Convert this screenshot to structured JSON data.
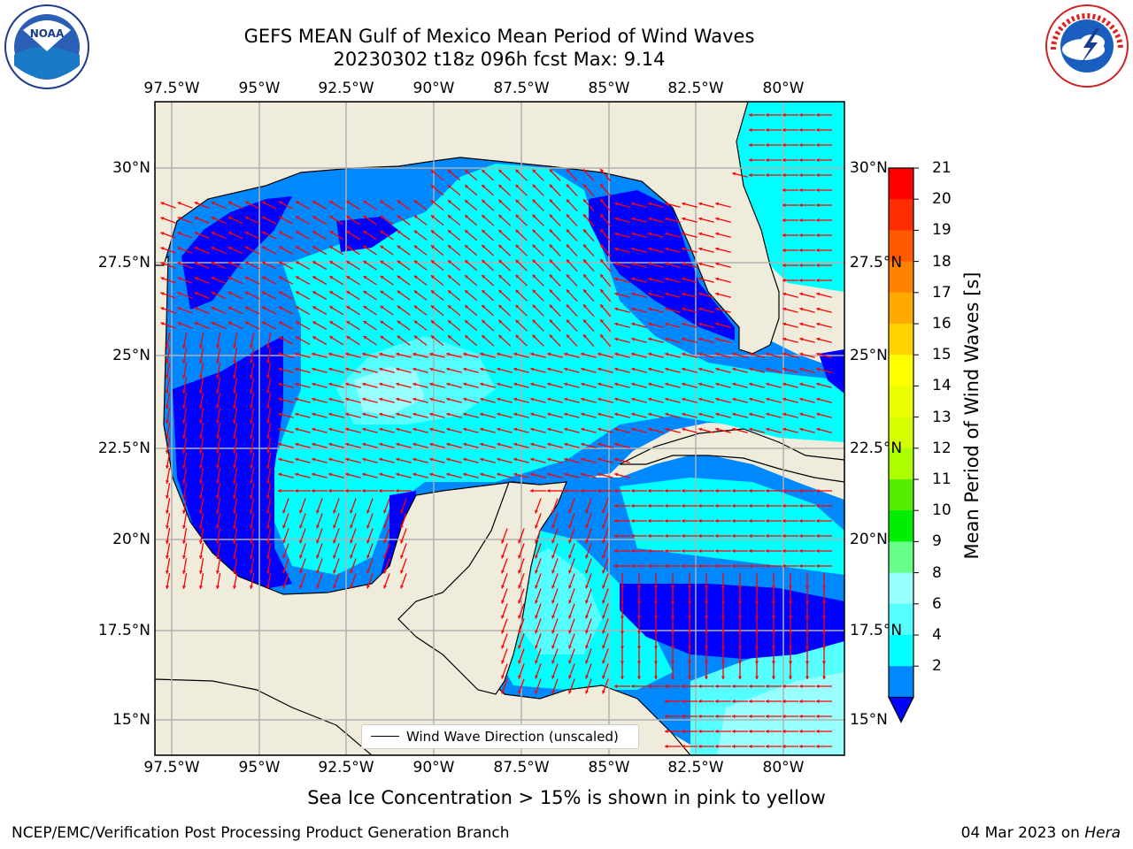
{
  "header": {
    "title_line1": "GEFS MEAN Gulf of Mexico Mean Period of Wind Waves",
    "title_line2": "20230302 t18z 096h fcst   Max: 9.14"
  },
  "logos": {
    "left": {
      "name": "NOAA",
      "ring_text": "NATIONAL OCEANIC AND ATMOSPHERIC ADMINISTRATION · U.S. DEPARTMENT OF COMMERCE"
    },
    "right": {
      "name": "NATIONAL WEATHER SERVICE"
    }
  },
  "axes": {
    "lon_labels": [
      "97.5°W",
      "95°W",
      "92.5°W",
      "90°W",
      "87.5°W",
      "85°W",
      "82.5°W",
      "80°W"
    ],
    "lat_labels": [
      "30°N",
      "27.5°N",
      "25°N",
      "22.5°N",
      "20°N",
      "17.5°N",
      "15°N"
    ],
    "lon_range": [
      -98.3,
      -78.5
    ],
    "lat_range": [
      14.0,
      31.8
    ]
  },
  "colorbar": {
    "label": "Mean Period of Wind Waves [s]",
    "ticks": [
      "21",
      "20",
      "19",
      "18",
      "17",
      "16",
      "15",
      "14",
      "13",
      "12",
      "11",
      "10",
      "9",
      "8",
      "6",
      "4",
      "2"
    ],
    "colors": [
      "#ff0000",
      "#ff2d00",
      "#ff5a00",
      "#ff8200",
      "#ffaa00",
      "#ffd200",
      "#ffff00",
      "#eaff00",
      "#d5ff00",
      "#aaff00",
      "#55ee00",
      "#00ee00",
      "#66ff88",
      "#99ffff",
      "#55ffff",
      "#00ffff",
      "#0088ff"
    ],
    "extend_color": "#0000ff"
  },
  "map": {
    "land_color": "#efecdc",
    "water_colors": {
      "short": "#0000ff",
      "mid": "#0088ff",
      "long": "#00ffff",
      "longer": "#55ffff",
      "longest": "#99ffff"
    },
    "arrow_color": "#ff0000"
  },
  "legend": {
    "label": "Wind Wave Direction (unscaled)"
  },
  "note": "Sea Ice Concentration > 15% is shown in pink to yellow",
  "footer": {
    "left": "NCEP/EMC/Verification Post Processing Product Generation Branch",
    "date": "04 Mar 2023 on",
    "machine": "Hera"
  }
}
